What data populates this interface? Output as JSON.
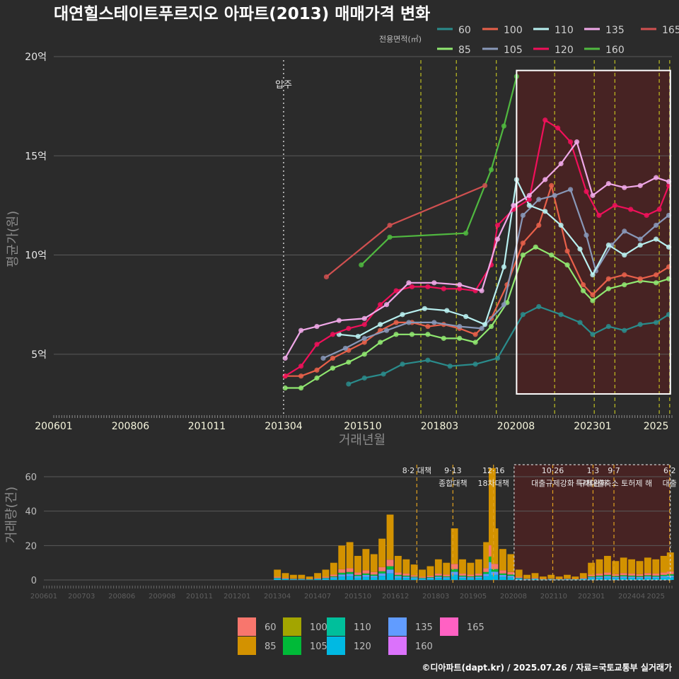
{
  "title": "대연힐스테이트푸르지오 아파트(2013) 매매가격 변화",
  "caption": "©디아파트(dapt.kr) / 2025.07.26 / 자료=국토교통부 실거래가",
  "colors": {
    "bg": "#2b2b2b",
    "grid": "#5a5a5a",
    "vline": "#d8d820",
    "box": "#ffffff",
    "shade": "#6b1a1a"
  },
  "legend_main": {
    "title": "전용면적(㎡)",
    "items": [
      {
        "label": "60",
        "color": "#2a8c8c"
      },
      {
        "label": "100",
        "color": "#e8604a"
      },
      {
        "label": "110",
        "color": "#b8f0f0"
      },
      {
        "label": "135",
        "color": "#f0a8e8"
      },
      {
        "label": "165",
        "color": "#d05050"
      },
      {
        "label": "85",
        "color": "#90e870"
      },
      {
        "label": "105",
        "color": "#8898b8"
      },
      {
        "label": "120",
        "color": "#f0105a"
      },
      {
        "label": "160",
        "color": "#50b840"
      }
    ]
  },
  "legend_bottom": {
    "items": [
      {
        "label": "60",
        "color": "#f8766d"
      },
      {
        "label": "100",
        "color": "#a3a500"
      },
      {
        "label": "110",
        "color": "#00bf9b"
      },
      {
        "label": "135",
        "color": "#619cff"
      },
      {
        "label": "165",
        "color": "#ff61c3"
      },
      {
        "label": "85",
        "color": "#d39200"
      },
      {
        "label": "105",
        "color": "#00ba38"
      },
      {
        "label": "120",
        "color": "#00b9e3"
      },
      {
        "label": "160",
        "color": "#db72fb"
      }
    ]
  },
  "chart_data": [
    {
      "type": "line",
      "title": "대연힐스테이트푸르지오 아파트(2013) 매매가격 변화",
      "xlabel": "거래년월",
      "ylabel": "평균가(원)",
      "xlim": [
        2006.0,
        2025.5
      ],
      "ylim": [
        2.0,
        20.0
      ],
      "x_ticks": [
        {
          "x": 2006.0,
          "label": "200601"
        },
        {
          "x": 2008.42,
          "label": "200806"
        },
        {
          "x": 2010.83,
          "label": "201011"
        },
        {
          "x": 2013.25,
          "label": "201304"
        },
        {
          "x": 2015.75,
          "label": "201510"
        },
        {
          "x": 2018.17,
          "label": "201803"
        },
        {
          "x": 2020.58,
          "label": "202008"
        },
        {
          "x": 2023.0,
          "label": "202301"
        },
        {
          "x": 2025.0,
          "label": "2025"
        }
      ],
      "y_ticks": [
        {
          "y": 5,
          "label": "5억"
        },
        {
          "y": 10,
          "label": "10억"
        },
        {
          "y": 15,
          "label": "15억"
        },
        {
          "y": 20,
          "label": "20억"
        }
      ],
      "annotations": [
        {
          "x": 2013.25,
          "label": "입주"
        }
      ],
      "policy_lines": [
        2017.58,
        2018.7,
        2019.96,
        2021.8,
        2023.05,
        2023.7,
        2025.1,
        2025.43
      ],
      "highlight_box": {
        "x0": 2020.6,
        "x1": 2025.45,
        "y0": 3.0,
        "y1": 19.3
      },
      "series": [
        {
          "name": "60",
          "x": [
            2015.3,
            2015.8,
            2016.4,
            2017.0,
            2017.8,
            2018.5,
            2019.3,
            2020.0,
            2020.8,
            2021.3,
            2022.0,
            2022.6,
            2023.0,
            2023.5,
            2024.0,
            2024.5,
            2025.0,
            2025.4
          ],
          "values": [
            3.5,
            3.8,
            4.0,
            4.5,
            4.7,
            4.4,
            4.5,
            4.8,
            7.0,
            7.4,
            7.0,
            6.6,
            6.0,
            6.4,
            6.2,
            6.5,
            6.6,
            7.0
          ]
        },
        {
          "name": "85",
          "x": [
            2013.3,
            2013.8,
            2014.3,
            2014.8,
            2015.3,
            2015.8,
            2016.3,
            2016.8,
            2017.3,
            2017.8,
            2018.3,
            2018.8,
            2019.3,
            2019.8,
            2020.3,
            2020.8,
            2021.2,
            2021.7,
            2022.2,
            2022.7,
            2023.0,
            2023.5,
            2024.0,
            2024.5,
            2025.0,
            2025.4
          ],
          "values": [
            3.3,
            3.3,
            3.8,
            4.3,
            4.6,
            5.0,
            5.6,
            6.0,
            6.0,
            6.0,
            5.8,
            5.8,
            5.6,
            6.4,
            7.6,
            10.0,
            10.4,
            10.0,
            9.5,
            8.2,
            7.7,
            8.3,
            8.5,
            8.7,
            8.6,
            8.8
          ]
        },
        {
          "name": "100",
          "x": [
            2013.3,
            2013.8,
            2014.3,
            2014.8,
            2015.3,
            2015.8,
            2016.3,
            2016.8,
            2017.3,
            2017.8,
            2018.3,
            2018.8,
            2019.3,
            2019.8,
            2020.3,
            2020.8,
            2021.3,
            2021.7,
            2022.2,
            2022.7,
            2023.0,
            2023.5,
            2024.0,
            2024.5,
            2025.0,
            2025.4
          ],
          "values": [
            3.9,
            3.9,
            4.2,
            4.8,
            5.2,
            5.6,
            6.2,
            6.6,
            6.6,
            6.4,
            6.5,
            6.3,
            6.0,
            6.8,
            8.5,
            10.6,
            11.5,
            13.5,
            10.2,
            8.5,
            8.0,
            8.8,
            9.0,
            8.8,
            9.0,
            9.4
          ]
        },
        {
          "name": "105",
          "x": [
            2014.5,
            2015.2,
            2015.8,
            2016.5,
            2017.2,
            2018.0,
            2018.8,
            2019.5,
            2020.2,
            2020.8,
            2021.3,
            2021.8,
            2022.3,
            2022.8,
            2023.1,
            2023.6,
            2024.0,
            2024.5,
            2025.0,
            2025.4
          ],
          "values": [
            4.8,
            5.3,
            5.8,
            6.2,
            6.6,
            6.6,
            6.4,
            6.3,
            7.5,
            12.0,
            12.8,
            13.0,
            13.3,
            11.0,
            9.2,
            10.5,
            11.2,
            10.8,
            11.5,
            12.0
          ]
        },
        {
          "name": "110",
          "x": [
            2015.0,
            2015.6,
            2016.3,
            2017.0,
            2017.7,
            2018.4,
            2019.0,
            2019.6,
            2020.2,
            2020.6,
            2021.0,
            2021.5,
            2022.0,
            2022.6,
            2023.0,
            2023.5,
            2024.0,
            2024.5,
            2025.0,
            2025.4
          ],
          "values": [
            6.0,
            5.9,
            6.5,
            7.0,
            7.3,
            7.2,
            6.9,
            6.5,
            9.4,
            13.8,
            12.5,
            12.2,
            11.5,
            10.3,
            9.0,
            10.5,
            10.0,
            10.5,
            10.8,
            10.4
          ]
        },
        {
          "name": "120",
          "x": [
            2013.3,
            2013.8,
            2014.3,
            2014.8,
            2015.3,
            2015.8,
            2016.3,
            2016.8,
            2017.3,
            2017.8,
            2018.3,
            2018.8,
            2019.3,
            2019.8,
            2020.0,
            2020.5,
            2021.0,
            2021.5,
            2021.9,
            2022.3,
            2022.8,
            2023.2,
            2023.7,
            2024.2,
            2024.7,
            2025.1,
            2025.4
          ],
          "values": [
            3.9,
            4.4,
            5.5,
            6.0,
            6.3,
            6.5,
            7.5,
            8.2,
            8.4,
            8.4,
            8.3,
            8.3,
            8.2,
            9.5,
            11.5,
            12.3,
            12.8,
            16.8,
            16.4,
            15.7,
            13.2,
            12.0,
            12.5,
            12.3,
            12.0,
            12.3,
            13.5
          ]
        },
        {
          "name": "135",
          "x": [
            2013.3,
            2013.8,
            2014.3,
            2015.0,
            2015.8,
            2016.5,
            2017.2,
            2018.0,
            2018.8,
            2019.5,
            2020.0,
            2020.5,
            2021.0,
            2021.5,
            2022.0,
            2022.5,
            2023.0,
            2023.5,
            2024.0,
            2024.5,
            2025.0,
            2025.4
          ],
          "values": [
            4.8,
            6.2,
            6.4,
            6.7,
            6.8,
            7.5,
            8.6,
            8.6,
            8.5,
            8.2,
            10.8,
            12.5,
            13.0,
            13.8,
            14.6,
            15.7,
            13.0,
            13.6,
            13.4,
            13.5,
            13.9,
            13.7
          ]
        },
        {
          "name": "160",
          "x": [
            2015.7,
            2016.6,
            2019.0,
            2019.8,
            2020.2,
            2020.6
          ],
          "values": [
            9.5,
            10.9,
            11.1,
            14.3,
            16.5,
            19.0
          ]
        },
        {
          "name": "165",
          "x": [
            2014.6,
            2016.6,
            2019.6
          ],
          "values": [
            8.9,
            11.5,
            13.5
          ]
        }
      ]
    },
    {
      "type": "bar",
      "stacked": true,
      "xlabel": "",
      "ylabel": "거래량(건)",
      "xlim": [
        2006.0,
        2025.5
      ],
      "ylim": [
        0,
        67
      ],
      "x_ticks": [
        {
          "x": 2006.0,
          "label": "200601"
        },
        {
          "x": 2007.17,
          "label": "200703"
        },
        {
          "x": 2008.42,
          "label": "200806"
        },
        {
          "x": 2009.67,
          "label": "200908"
        },
        {
          "x": 2010.83,
          "label": "201011"
        },
        {
          "x": 2012.0,
          "label": "201201"
        },
        {
          "x": 2013.25,
          "label": "201304"
        },
        {
          "x": 2014.5,
          "label": "201407"
        },
        {
          "x": 2015.75,
          "label": "201510"
        },
        {
          "x": 2016.92,
          "label": "201612"
        },
        {
          "x": 2018.17,
          "label": "201803"
        },
        {
          "x": 2019.33,
          "label": "201905"
        },
        {
          "x": 2020.58,
          "label": "202008"
        },
        {
          "x": 2021.83,
          "label": "202110"
        },
        {
          "x": 2023.0,
          "label": "202301"
        },
        {
          "x": 2024.25,
          "label": "202404"
        },
        {
          "x": 2025.0,
          "label": "2025"
        }
      ],
      "y_ticks": [
        {
          "y": 0,
          "label": "0"
        },
        {
          "y": 20,
          "label": "20"
        },
        {
          "y": 40,
          "label": "40"
        },
        {
          "y": 60,
          "label": "60"
        }
      ],
      "highlight_box": {
        "x0": 2020.6,
        "x1": 2025.45,
        "y0": 0,
        "y1": 67
      },
      "policies": [
        {
          "x": 2017.58,
          "label": "8·2 대책",
          "label2": ""
        },
        {
          "x": 2018.7,
          "label": "9·13",
          "label2": "종합대책"
        },
        {
          "x": 2019.96,
          "label": "12·16",
          "label2": "18차대책"
        },
        {
          "x": 2021.8,
          "label": "10·26",
          "label2": "대출규제강화"
        },
        {
          "x": 2023.05,
          "label": "1·3",
          "label2": "규제완화"
        },
        {
          "x": 2023.7,
          "label": "9·7",
          "label2": "특례대출축소 토허제 해"
        },
        {
          "x": 2025.43,
          "label": "6·2",
          "label2": "대출"
        }
      ],
      "monthly_totals": [
        {
          "x": 2013.25,
          "v": 6
        },
        {
          "x": 2013.5,
          "v": 4
        },
        {
          "x": 2013.75,
          "v": 3
        },
        {
          "x": 2014.0,
          "v": 3
        },
        {
          "x": 2014.25,
          "v": 2
        },
        {
          "x": 2014.5,
          "v": 4
        },
        {
          "x": 2014.75,
          "v": 6
        },
        {
          "x": 2015.0,
          "v": 10
        },
        {
          "x": 2015.25,
          "v": 20
        },
        {
          "x": 2015.5,
          "v": 22
        },
        {
          "x": 2015.75,
          "v": 14
        },
        {
          "x": 2016.0,
          "v": 18
        },
        {
          "x": 2016.25,
          "v": 15
        },
        {
          "x": 2016.5,
          "v": 24
        },
        {
          "x": 2016.75,
          "v": 38
        },
        {
          "x": 2017.0,
          "v": 14
        },
        {
          "x": 2017.25,
          "v": 12
        },
        {
          "x": 2017.5,
          "v": 9
        },
        {
          "x": 2017.75,
          "v": 6
        },
        {
          "x": 2018.0,
          "v": 8
        },
        {
          "x": 2018.25,
          "v": 12
        },
        {
          "x": 2018.5,
          "v": 10
        },
        {
          "x": 2018.75,
          "v": 30
        },
        {
          "x": 2019.0,
          "v": 12
        },
        {
          "x": 2019.25,
          "v": 10
        },
        {
          "x": 2019.5,
          "v": 12
        },
        {
          "x": 2019.75,
          "v": 22
        },
        {
          "x": 2019.92,
          "v": 65
        },
        {
          "x": 2020.0,
          "v": 30
        },
        {
          "x": 2020.25,
          "v": 18
        },
        {
          "x": 2020.5,
          "v": 15
        },
        {
          "x": 2020.75,
          "v": 6
        },
        {
          "x": 2021.0,
          "v": 3
        },
        {
          "x": 2021.25,
          "v": 4
        },
        {
          "x": 2021.5,
          "v": 2
        },
        {
          "x": 2021.75,
          "v": 3
        },
        {
          "x": 2022.0,
          "v": 2
        },
        {
          "x": 2022.25,
          "v": 3
        },
        {
          "x": 2022.5,
          "v": 2
        },
        {
          "x": 2022.75,
          "v": 4
        },
        {
          "x": 2023.0,
          "v": 10
        },
        {
          "x": 2023.25,
          "v": 12
        },
        {
          "x": 2023.5,
          "v": 14
        },
        {
          "x": 2023.75,
          "v": 11
        },
        {
          "x": 2024.0,
          "v": 13
        },
        {
          "x": 2024.25,
          "v": 12
        },
        {
          "x": 2024.5,
          "v": 11
        },
        {
          "x": 2024.75,
          "v": 13
        },
        {
          "x": 2025.0,
          "v": 12
        },
        {
          "x": 2025.25,
          "v": 14
        },
        {
          "x": 2025.45,
          "v": 16
        }
      ]
    }
  ]
}
